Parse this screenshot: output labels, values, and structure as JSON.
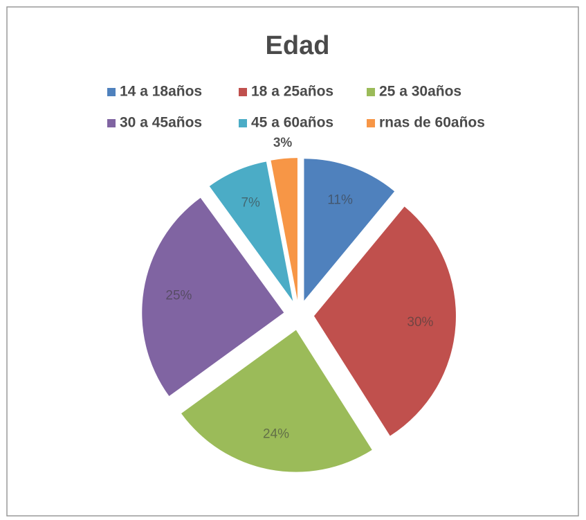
{
  "chart_data": {
    "type": "pie",
    "title": "Edad",
    "categories": [
      "14 a 18años",
      "18 a 25años",
      "25 a 30años",
      "30 a 45años",
      "45 a 60años",
      "rnas de 60años"
    ],
    "values": [
      11,
      30,
      24,
      25,
      7,
      3
    ],
    "value_labels": [
      "11%",
      "30%",
      "24%",
      "25%",
      "7%",
      "3%"
    ],
    "colors": [
      "#4f81bd",
      "#c0504d",
      "#9bbb59",
      "#8064a2",
      "#4bacc6",
      "#f79646"
    ],
    "legend": "top",
    "exploded": true
  }
}
